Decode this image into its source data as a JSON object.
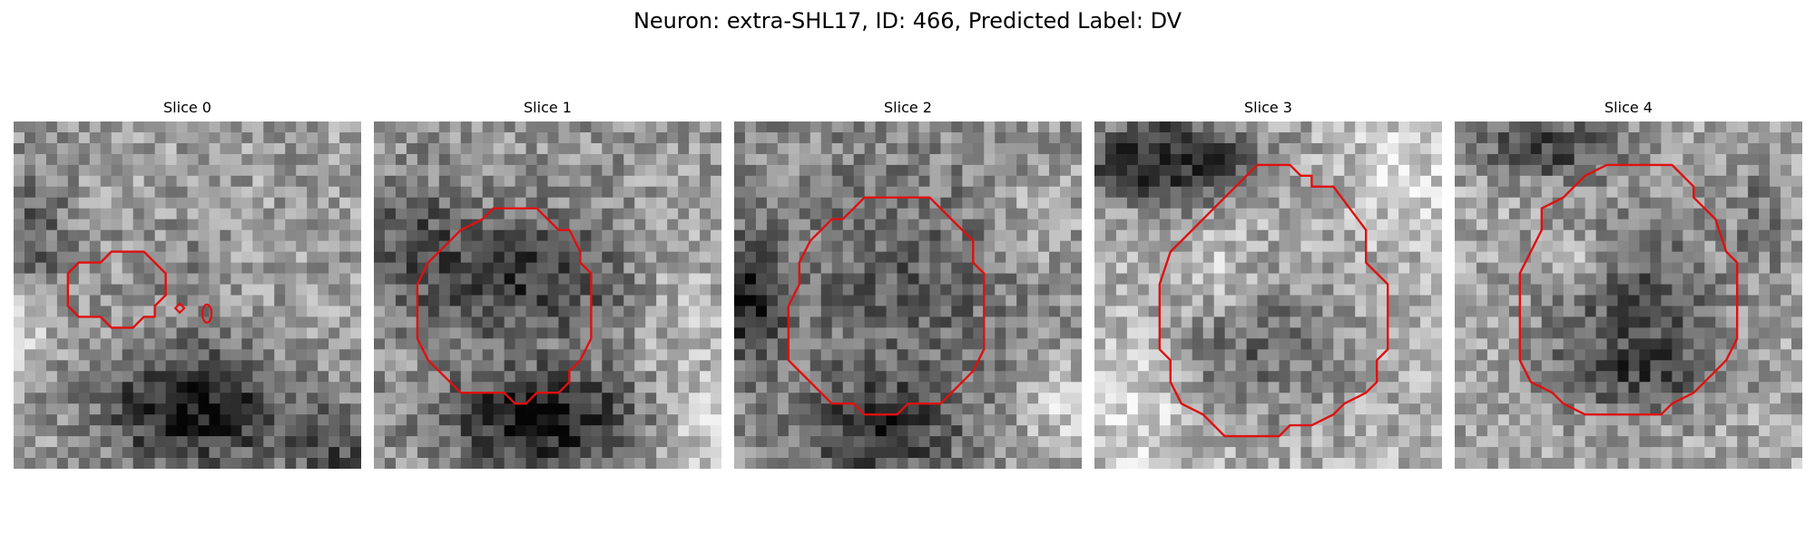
{
  "figure": {
    "title": "Neuron: extra-SHL17, ID: 466, Predicted Label: DV"
  },
  "panels": [
    {
      "title": "Slice 0"
    },
    {
      "title": "Slice 1"
    },
    {
      "title": "Slice 2"
    },
    {
      "title": "Slice 3"
    },
    {
      "title": "Slice 4"
    }
  ],
  "colors": {
    "contour": "#e01010",
    "background": "#ffffff"
  }
}
